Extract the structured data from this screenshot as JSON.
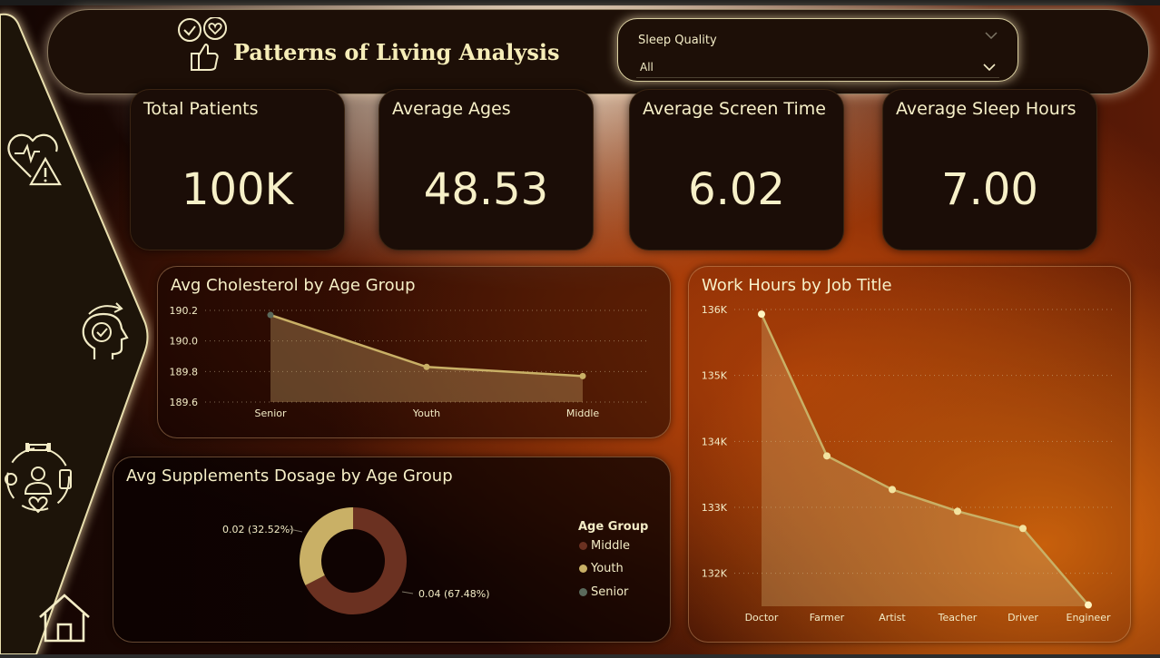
{
  "header": {
    "title": "Patterns of Living Analysis",
    "slicer": {
      "label": "Sleep Quality",
      "value": "All"
    }
  },
  "kpis": [
    {
      "label": "Total Patients",
      "value": "100K"
    },
    {
      "label": "Average Ages",
      "value": "48.53"
    },
    {
      "label": "Average Screen Time",
      "value": "6.02"
    },
    {
      "label": "Average Sleep Hours",
      "value": "7.00"
    }
  ],
  "sidebar": {
    "icons": [
      "heart-alert-icon",
      "mind-check-icon",
      "fitness-wellbeing-icon",
      "home-icon"
    ]
  },
  "colors": {
    "accent": "#f6edb8",
    "line": "#c9b066",
    "area": "rgba(205,170,110,0.35)",
    "middle": "#6b3121",
    "youth": "#c9b066",
    "senior": "#5a6a5c"
  },
  "chart_data": [
    {
      "type": "area",
      "title": "Avg Cholesterol by Age Group",
      "categories": [
        "Senior",
        "Youth",
        "Middle"
      ],
      "values": [
        190.17,
        189.83,
        189.77
      ],
      "yticks": [
        "190.2",
        "190.0",
        "189.8",
        "189.6"
      ],
      "ylim": [
        189.6,
        190.2
      ],
      "grid": true
    },
    {
      "type": "pie",
      "title": "Avg Supplements Dosage by Age Group",
      "legend_title": "Age Group",
      "categories": [
        "Middle",
        "Youth",
        "Senior"
      ],
      "values": [
        0.04,
        0.02,
        0
      ],
      "percent": [
        67.48,
        32.52,
        0
      ],
      "labels": [
        "0.04 (67.48%)",
        "0.02 (32.52%)"
      ],
      "legend_placement": "right"
    },
    {
      "type": "area",
      "title": "Work Hours by Job Title",
      "categories": [
        "Doctor",
        "Farmer",
        "Artist",
        "Teacher",
        "Driver",
        "Engineer"
      ],
      "values": [
        135930,
        133780,
        133270,
        132940,
        132680,
        131520
      ],
      "yticks": [
        "136K",
        "135K",
        "134K",
        "133K",
        "132K"
      ],
      "ylim": [
        131500,
        136000
      ],
      "grid": true
    }
  ]
}
